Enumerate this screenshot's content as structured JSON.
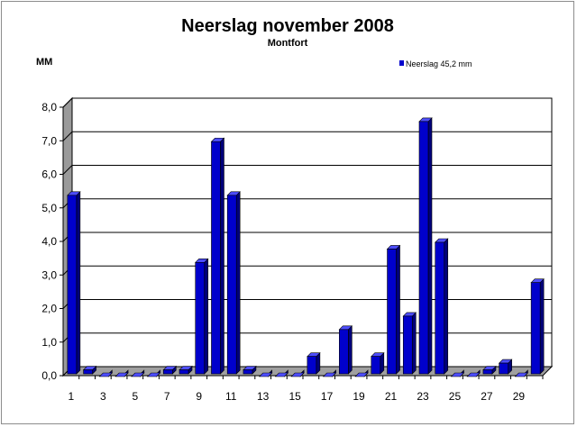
{
  "chart_data": {
    "type": "bar",
    "title": "Neerslag november 2008",
    "subtitle": "Montfort",
    "ylabel": "MM",
    "xlabel": "",
    "ylim": [
      0,
      8
    ],
    "y_ticks": [
      "0,0",
      "1,0",
      "2,0",
      "3,0",
      "4,0",
      "5,0",
      "6,0",
      "7,0",
      "8,0"
    ],
    "categories": [
      "1",
      "2",
      "3",
      "4",
      "5",
      "6",
      "7",
      "8",
      "9",
      "10",
      "11",
      "12",
      "13",
      "14",
      "15",
      "16",
      "17",
      "18",
      "19",
      "20",
      "21",
      "22",
      "23",
      "24",
      "25",
      "26",
      "27",
      "28",
      "29",
      "30"
    ],
    "x_tick_labels": [
      "1",
      "3",
      "5",
      "7",
      "9",
      "11",
      "13",
      "15",
      "17",
      "19",
      "21",
      "23",
      "25",
      "27",
      "29"
    ],
    "series": [
      {
        "name": "Neerslag 45,2 mm",
        "color": "#0000cc",
        "values": [
          5.4,
          0.2,
          0,
          0,
          0,
          0,
          0.2,
          0.2,
          3.4,
          7.0,
          5.4,
          0.2,
          0,
          0,
          0,
          0.6,
          0,
          1.4,
          0,
          0.6,
          3.8,
          1.8,
          7.6,
          4.0,
          0,
          0,
          0.2,
          0.4,
          0,
          2.8
        ]
      }
    ],
    "grid": true,
    "legend_position": "top-right",
    "colors": {
      "bar": "#0000cc",
      "bar_top": "#4d4dff",
      "bar_side": "#00007a",
      "wall": "#ffffff",
      "side_wall": "#9a9a9a",
      "floor": "#a0a0a0"
    }
  }
}
